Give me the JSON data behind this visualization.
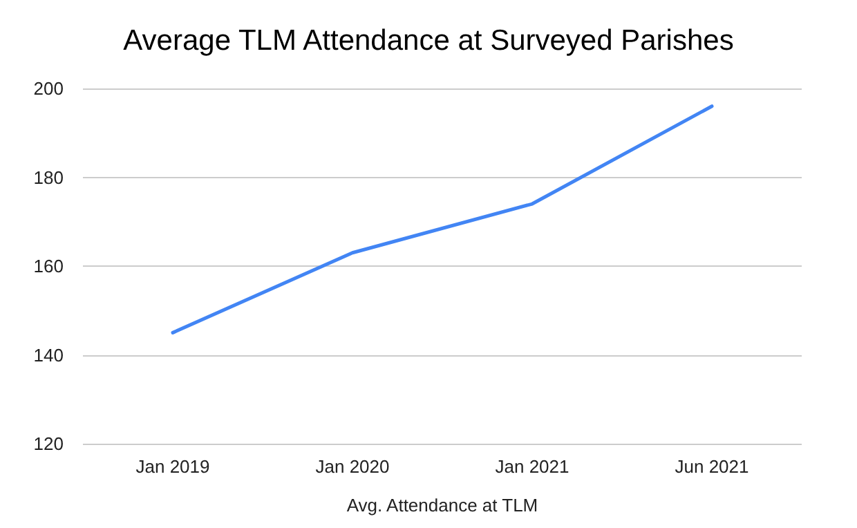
{
  "chart_data": {
    "type": "line",
    "title": "Average TLM Attendance at Surveyed Parishes",
    "xlabel": "Avg. Attendance at TLM",
    "categories": [
      "Jan 2019",
      "Jan 2020",
      "Jan 2021",
      "Jun 2021"
    ],
    "series": [
      {
        "color": "#4285f4",
        "values": [
          145,
          163,
          174,
          196
        ]
      }
    ],
    "ylim": [
      120,
      200
    ],
    "yticks": [
      120,
      140,
      160,
      180,
      200
    ],
    "grid": "y",
    "marker": "none",
    "line_style": "solid"
  }
}
